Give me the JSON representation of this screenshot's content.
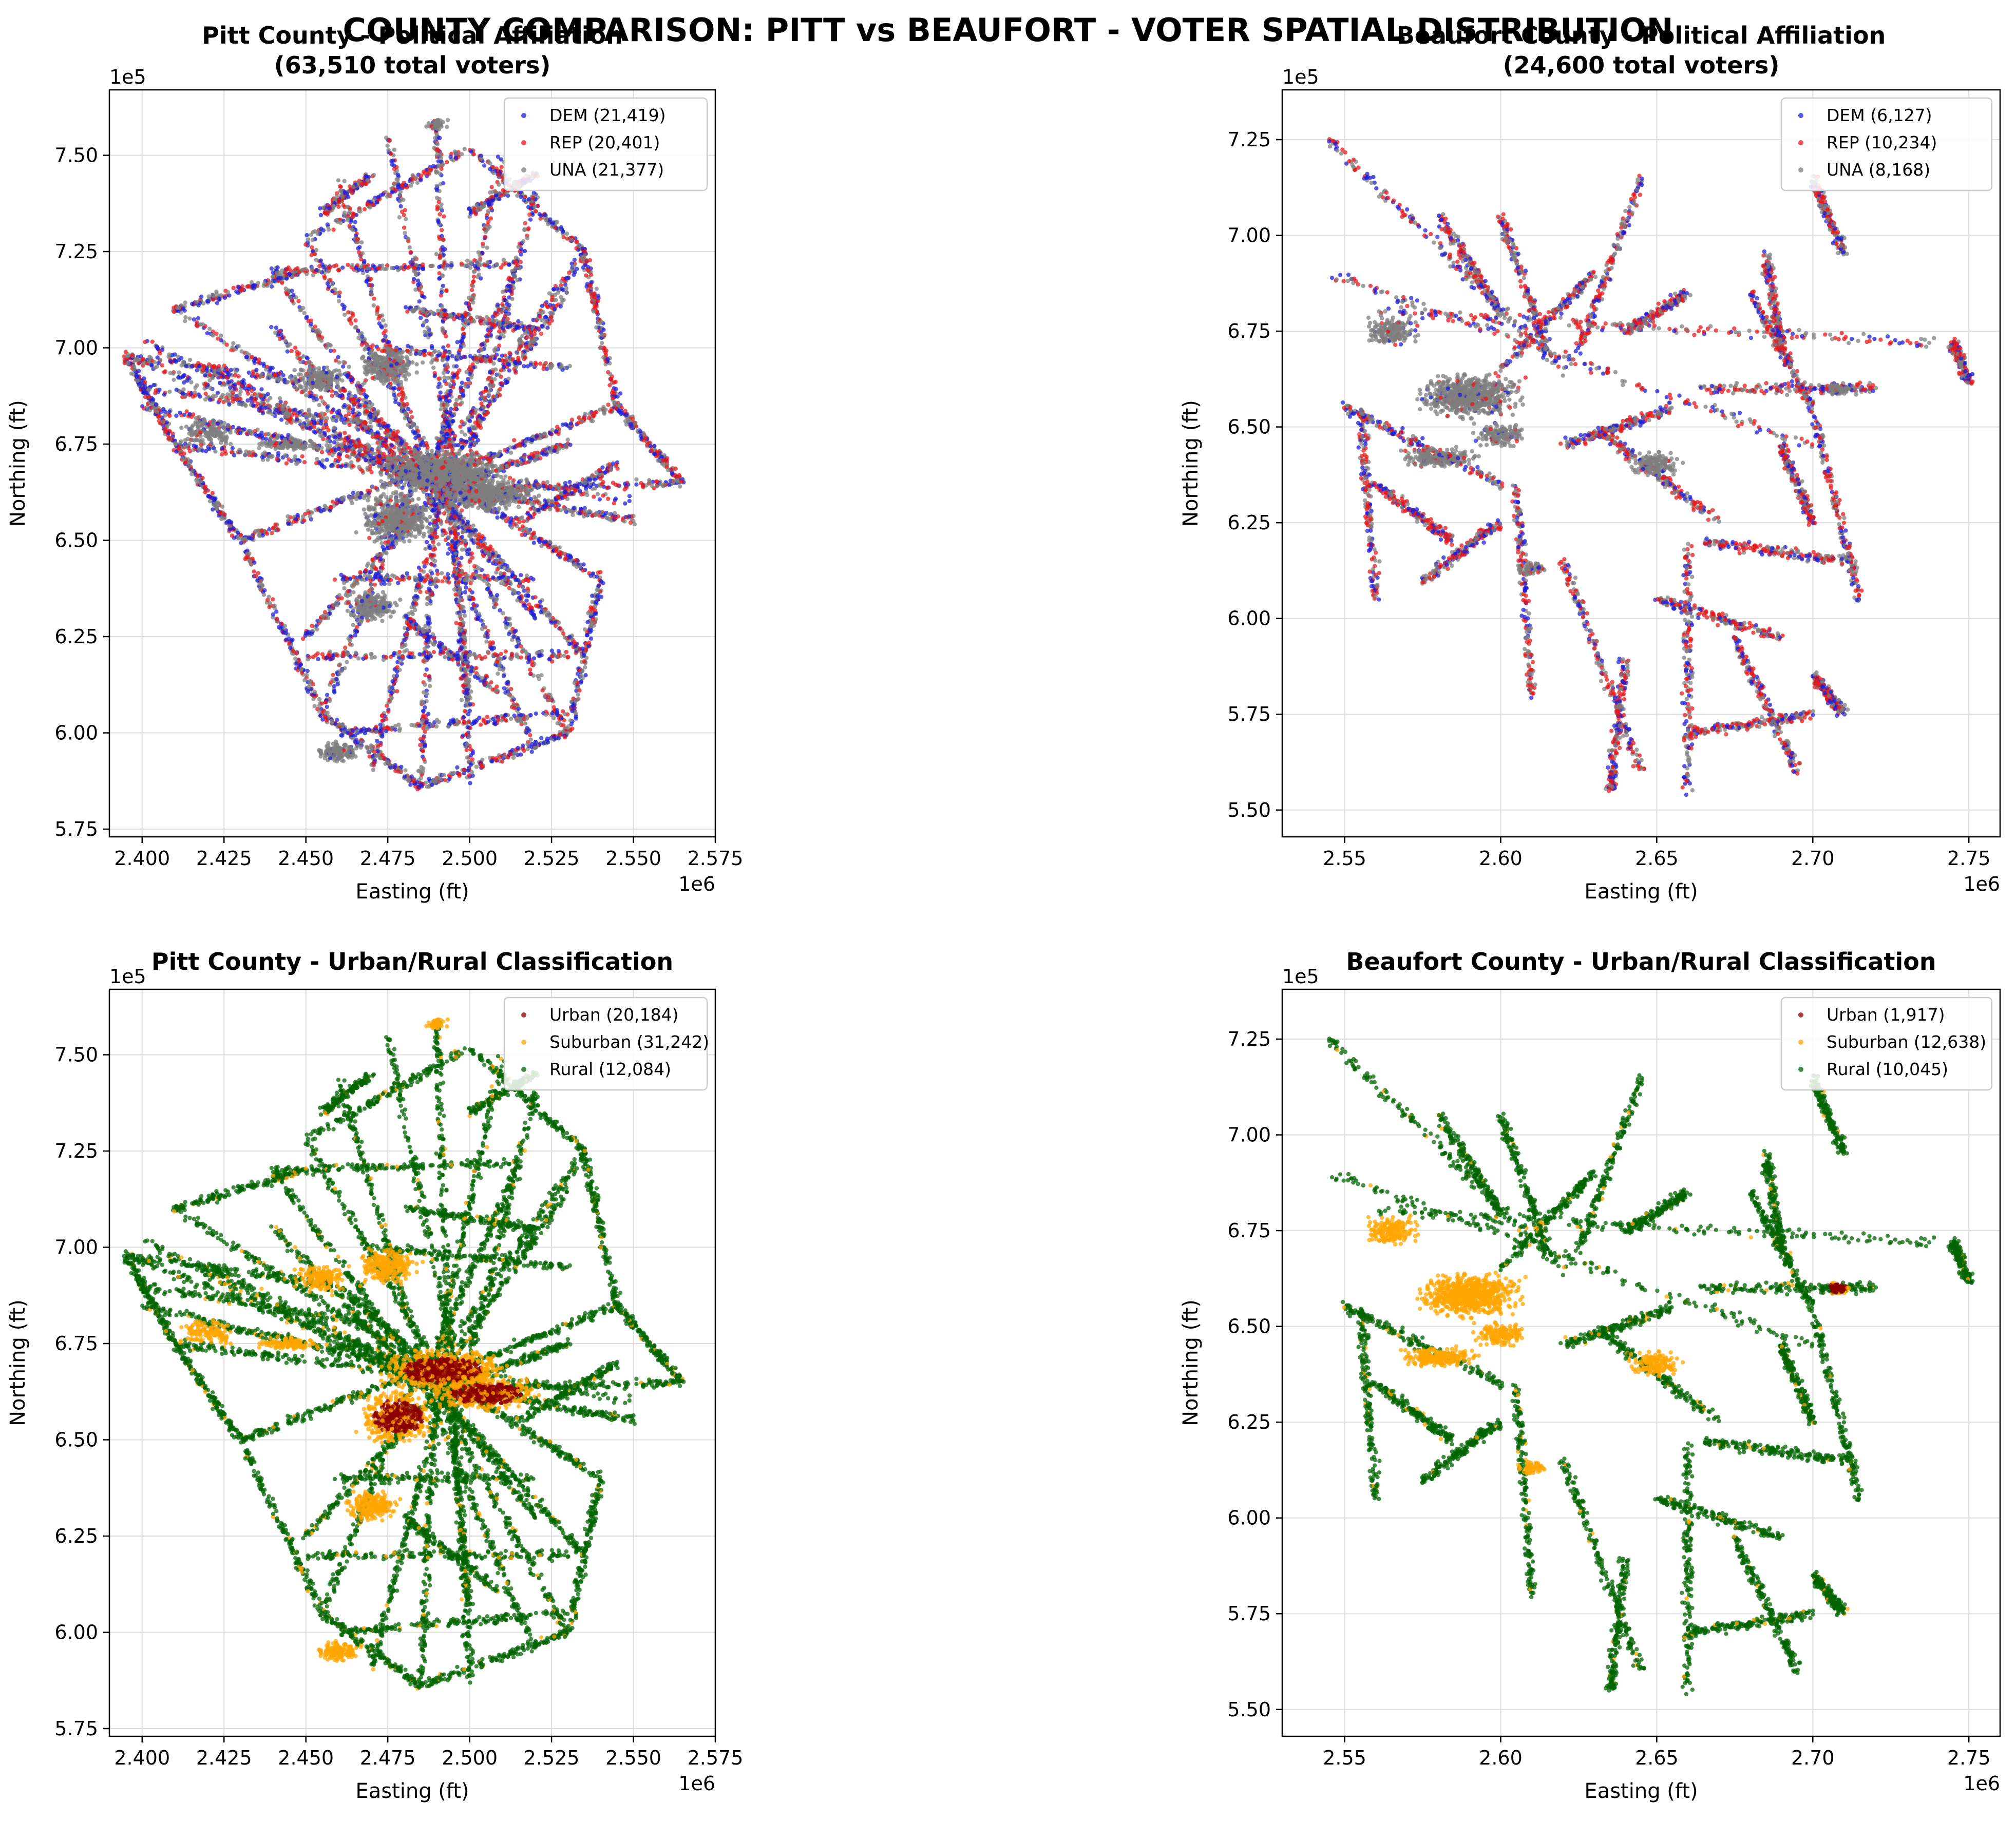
{
  "figure": {
    "suptitle": "COUNTY COMPARISON: PITT vs BEAUFORT - VOTER SPATIAL DISTRIBUTION"
  },
  "colors": {
    "DEM": "#1f1fd6",
    "REP": "#e41a1c",
    "UNA": "#7f7f7f",
    "Urban": "#8b0000",
    "Suburban": "#ffa500",
    "Rural": "#006400"
  },
  "chart_data": [
    {
      "type": "scatter",
      "title": "Pitt County - Political Affiliation\n(63,510 total voters)",
      "xlabel": "Easting (ft)",
      "ylabel": "Northing (ft)",
      "x_offset_label": "1e6",
      "y_offset_label": "1e5",
      "xlim": [
        2.39,
        2.575
      ],
      "ylim": [
        5.73,
        7.67
      ],
      "xticks": [
        "2.400",
        "2.425",
        "2.450",
        "2.475",
        "2.500",
        "2.525",
        "2.550",
        "2.575"
      ],
      "yticks": [
        "5.75",
        "6.00",
        "6.25",
        "6.50",
        "6.75",
        "7.00",
        "7.25",
        "7.50"
      ],
      "grid": true,
      "legend_position": "top-right",
      "series": [
        {
          "name": "DEM (21,419)",
          "key": "DEM"
        },
        {
          "name": "REP (20,401)",
          "key": "REP"
        },
        {
          "name": "UNA (21,377)",
          "key": "UNA"
        }
      ]
    },
    {
      "type": "scatter",
      "title": "Beaufort County - Political Affiliation\n(24,600 total voters)",
      "xlabel": "Easting (ft)",
      "ylabel": "Northing (ft)",
      "x_offset_label": "1e6",
      "y_offset_label": "1e5",
      "xlim": [
        2.53,
        2.76
      ],
      "ylim": [
        5.43,
        7.38
      ],
      "xticks": [
        "2.55",
        "2.60",
        "2.65",
        "2.70",
        "2.75"
      ],
      "yticks": [
        "5.50",
        "5.75",
        "6.00",
        "6.25",
        "6.50",
        "6.75",
        "7.00",
        "7.25"
      ],
      "grid": true,
      "legend_position": "top-right",
      "series": [
        {
          "name": "DEM (6,127)",
          "key": "DEM"
        },
        {
          "name": "REP (10,234)",
          "key": "REP"
        },
        {
          "name": "UNA (8,168)",
          "key": "UNA"
        }
      ]
    },
    {
      "type": "scatter",
      "title": "Pitt County - Urban/Rural Classification",
      "xlabel": "Easting (ft)",
      "ylabel": "Northing (ft)",
      "x_offset_label": "1e6",
      "y_offset_label": "1e5",
      "xlim": [
        2.39,
        2.575
      ],
      "ylim": [
        5.73,
        7.67
      ],
      "xticks": [
        "2.400",
        "2.425",
        "2.450",
        "2.475",
        "2.500",
        "2.525",
        "2.550",
        "2.575"
      ],
      "yticks": [
        "5.75",
        "6.00",
        "6.25",
        "6.50",
        "6.75",
        "7.00",
        "7.25",
        "7.50"
      ],
      "grid": true,
      "legend_position": "top-right",
      "series": [
        {
          "name": "Urban (20,184)",
          "key": "Urban"
        },
        {
          "name": "Suburban (31,242)",
          "key": "Suburban"
        },
        {
          "name": "Rural (12,084)",
          "key": "Rural"
        }
      ]
    },
    {
      "type": "scatter",
      "title": "Beaufort County - Urban/Rural Classification",
      "xlabel": "Easting (ft)",
      "ylabel": "Northing (ft)",
      "x_offset_label": "1e6",
      "y_offset_label": "1e5",
      "xlim": [
        2.53,
        2.76
      ],
      "ylim": [
        5.43,
        7.38
      ],
      "xticks": [
        "2.55",
        "2.60",
        "2.65",
        "2.70",
        "2.75"
      ],
      "yticks": [
        "5.50",
        "5.75",
        "6.00",
        "6.25",
        "6.50",
        "6.75",
        "7.00",
        "7.25"
      ],
      "grid": true,
      "legend_position": "top-right",
      "series": [
        {
          "name": "Urban (1,917)",
          "key": "Urban"
        },
        {
          "name": "Suburban (12,638)",
          "key": "Suburban"
        },
        {
          "name": "Rural (10,045)",
          "key": "Rural"
        }
      ]
    }
  ]
}
